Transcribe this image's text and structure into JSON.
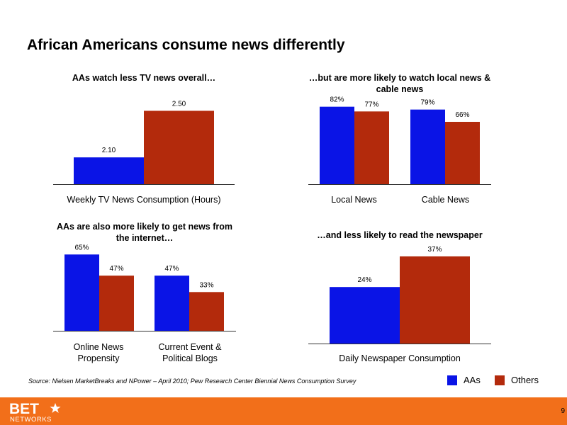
{
  "page": {
    "title": "African Americans consume news differently",
    "source": "Source:  Nielsen MarketBreaks and NPower – April 2010; Pew Research Center Biennial News Consumption Survey",
    "page_number": "9",
    "legend": [
      {
        "label": "AAs",
        "color": "#0a14e6"
      },
      {
        "label": "Others",
        "color": "#b32a0c"
      }
    ],
    "logo": {
      "main": "BET",
      "sub": "NETWORKS",
      "alt_text": "BET NETWORKS"
    }
  },
  "chart_data": [
    {
      "type": "bar",
      "title": "AAs watch less TV news overall…",
      "categories": [
        "Weekly TV News Consumption (Hours)"
      ],
      "series": [
        {
          "name": "AAs",
          "values": [
            2.1
          ],
          "labels": [
            "2.10"
          ]
        },
        {
          "name": "Others",
          "values": [
            2.5
          ],
          "labels": [
            "2.50"
          ]
        }
      ],
      "ylim": [
        1.87,
        2.6
      ],
      "grid": false
    },
    {
      "type": "bar",
      "title": "…but are more likely to watch local news & cable news",
      "categories": [
        "Local News",
        "Cable News"
      ],
      "series": [
        {
          "name": "AAs",
          "values": [
            82,
            79
          ],
          "labels": [
            "82%",
            "79%"
          ]
        },
        {
          "name": "Others",
          "values": [
            77,
            66
          ],
          "labels": [
            "77%",
            "66%"
          ]
        }
      ],
      "ylim": [
        0,
        90
      ],
      "grid": false
    },
    {
      "type": "bar",
      "title": "AAs are also more likely to get news from the internet…",
      "categories": [
        "Online News Propensity",
        "Current Event & Political Blogs"
      ],
      "series": [
        {
          "name": "AAs",
          "values": [
            65,
            47
          ],
          "labels": [
            "65%",
            "47%"
          ]
        },
        {
          "name": "Others",
          "values": [
            47,
            33
          ],
          "labels": [
            "47%",
            "33%"
          ]
        }
      ],
      "ylim": [
        0,
        70
      ],
      "grid": false
    },
    {
      "type": "bar",
      "title": "…and less likely to read the newspaper",
      "categories": [
        "Daily Newspaper Consumption"
      ],
      "series": [
        {
          "name": "AAs",
          "values": [
            24
          ],
          "labels": [
            "24%"
          ]
        },
        {
          "name": "Others",
          "values": [
            37
          ],
          "labels": [
            "37%"
          ]
        }
      ],
      "ylim": [
        0,
        40
      ],
      "grid": false
    }
  ]
}
